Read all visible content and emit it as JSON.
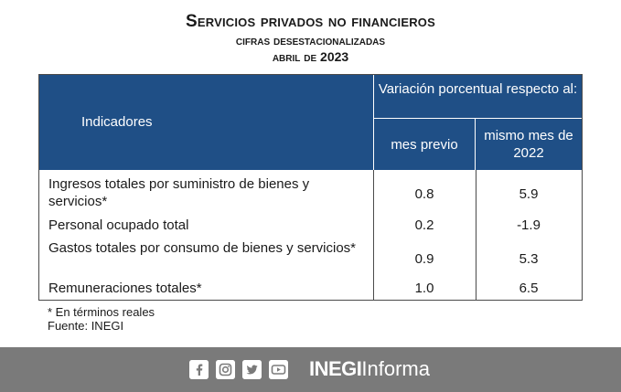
{
  "header": {
    "title": "Servicios privados no financieros",
    "subtitle": "cifras desestacionalizadas",
    "period": "abril de 2023"
  },
  "table": {
    "col_indicator": "Indicadores",
    "col_group": "Variación porcentual respecto al:",
    "col_prev": "mes previo",
    "col_same": "mismo mes de 2022",
    "rows": [
      {
        "label": "Ingresos totales por suministro de bienes y servicios*",
        "mes_previo": "0.8",
        "mismo_mes": "5.9"
      },
      {
        "label": "Personal ocupado total",
        "mes_previo": "0.2",
        "mismo_mes": "-1.9"
      },
      {
        "label": "Gastos totales por consumo de bienes y servicios*",
        "mes_previo": "0.9",
        "mismo_mes": "5.3"
      },
      {
        "label": "Remuneraciones totales*",
        "mes_previo": "1.0",
        "mismo_mes": "6.5"
      }
    ]
  },
  "notes": {
    "footnote": "* En términos reales",
    "source": "Fuente: INEGI"
  },
  "footer": {
    "social_icons": [
      "facebook-icon",
      "instagram-icon",
      "twitter-icon",
      "youtube-icon"
    ],
    "brand_bold": "INEGI",
    "brand_light": "Informa",
    "bar_color": "#7a7a7a"
  },
  "colors": {
    "header_blue": "#1f4f86"
  }
}
